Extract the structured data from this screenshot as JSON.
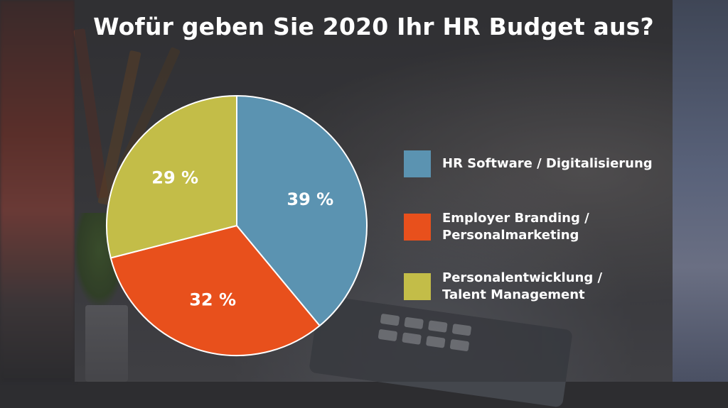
{
  "chart_data": {
    "type": "pie",
    "title": "Wofür geben Sie 2020 Ihr HR Budget aus?",
    "slices": [
      {
        "label_lines": [
          "HR Software / Digitalisierung"
        ],
        "value": 39,
        "value_label": "39 %",
        "color": "#5b93b1"
      },
      {
        "label_lines": [
          "Employer Branding /",
          "Personalmarketing"
        ],
        "value": 32,
        "value_label": "32 %",
        "color": "#e8501c"
      },
      {
        "label_lines": [
          "Personalentwicklung /",
          "Talent Management"
        ],
        "value": 29,
        "value_label": "29 %",
        "color": "#c3bd48"
      }
    ],
    "legend_position": "right"
  }
}
